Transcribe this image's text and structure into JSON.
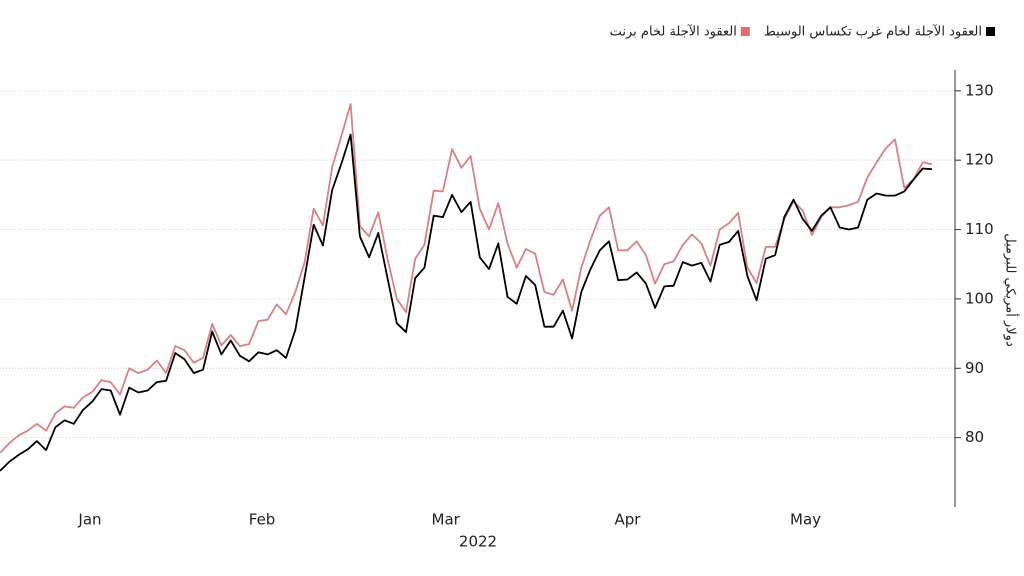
{
  "chart_data": {
    "type": "line",
    "x_label": "2022",
    "y_label": "دولار أمريكي للبرميل",
    "xlim": [
      0,
      103.5
    ],
    "xticks": [
      {
        "value": 9.75,
        "label": "Jan"
      },
      {
        "value": 28.4,
        "label": "Feb"
      },
      {
        "value": 48.3,
        "label": "Mar"
      },
      {
        "value": 68,
        "label": "Apr"
      },
      {
        "value": 87.3,
        "label": "May"
      }
    ],
    "ylim": [
      70,
      133
    ],
    "yticks": [
      80,
      90,
      100,
      110,
      120,
      130
    ],
    "grid": true,
    "legend": "top-right",
    "series": [
      {
        "name": "العقود الآجلة لخام غرب تكساس الوسيط",
        "color": "#000000",
        "values": [
          75.2,
          76.5,
          77.5,
          78.3,
          79.5,
          78.2,
          81.5,
          82.5,
          82,
          84,
          85.2,
          87,
          86.8,
          83.3,
          87.2,
          86.5,
          86.8,
          88,
          88.2,
          92.2,
          91.3,
          89.3,
          89.8,
          95.3,
          92,
          94,
          91.8,
          91,
          92.3,
          92,
          92.6,
          91.5,
          95.5,
          103,
          110.7,
          107.7,
          115.7,
          119.5,
          123.7,
          109,
          106,
          109.5,
          103,
          96.5,
          95.2,
          103,
          104.5,
          112,
          111.8,
          115,
          112.5,
          114,
          106,
          104.3,
          108,
          100.3,
          99.3,
          103.3,
          102,
          96,
          96,
          98.3,
          94.3,
          101,
          104.3,
          107,
          108.3,
          102.7,
          102.8,
          103.8,
          102.2,
          98.7,
          101.8,
          101.9,
          105.3,
          104.8,
          105.2,
          102.5,
          107.8,
          108.2,
          109.8,
          103.3,
          99.8,
          105.8,
          106.3,
          111.8,
          114.3,
          111.5,
          109.8,
          112,
          113.2,
          110.3,
          110,
          110.3,
          114.3,
          115.2,
          114.9,
          114.9,
          115.5,
          117.2,
          118.8,
          118.7
        ]
      },
      {
        "name": "العقود الآجلة لخام برنت",
        "color": "#d98087",
        "values": [
          77.8,
          79.2,
          80.3,
          81,
          82,
          81,
          83.5,
          84.5,
          84.3,
          85.8,
          86.6,
          88.3,
          88,
          86.2,
          90,
          89.3,
          89.8,
          91.1,
          89.3,
          93.2,
          92.6,
          90.8,
          91.5,
          96.4,
          93.3,
          94.8,
          93.2,
          93.5,
          96.8,
          97,
          99.2,
          97.8,
          101,
          105.2,
          113,
          110.6,
          119,
          123.5,
          128.1,
          110.5,
          109,
          112.5,
          105.8,
          100,
          98.1,
          105.8,
          107.8,
          115.6,
          115.5,
          121.6,
          118.9,
          120.6,
          113,
          110,
          113.8,
          108,
          104.5,
          107.2,
          106.5,
          101,
          100.6,
          102.8,
          98.3,
          104.5,
          108.5,
          112,
          113.2,
          107,
          107,
          108.3,
          106.3,
          102.2,
          105,
          105.4,
          107.8,
          109.3,
          108,
          104.8,
          110,
          110.9,
          112.4,
          104.5,
          102.3,
          107.5,
          107.5,
          111.5,
          114.1,
          112.7,
          109.2,
          111.8,
          113.2,
          113.2,
          113.5,
          114,
          117.5,
          119.7,
          121.7,
          123,
          116,
          117.2,
          119.7,
          119.4
        ]
      }
    ]
  }
}
